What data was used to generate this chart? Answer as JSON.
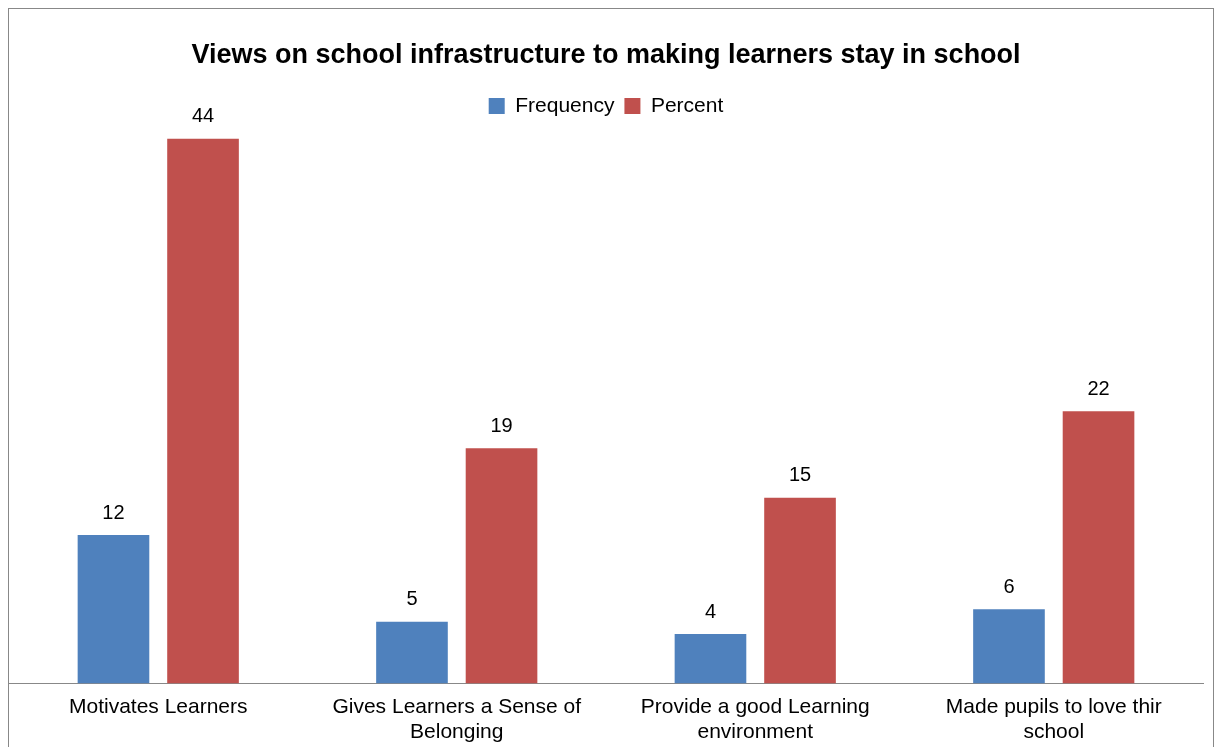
{
  "chart_data": {
    "type": "bar",
    "title": "Views on school infrastructure to making learners stay in school",
    "categories": [
      "Motivates Learners",
      "Gives Learners a Sense of Belonging",
      "Provide a good Learning environment",
      "Made pupils to love thir school"
    ],
    "series": [
      {
        "name": "Frequency",
        "color": "#4f81bd",
        "values": [
          12,
          5,
          4,
          6
        ]
      },
      {
        "name": "Percent",
        "color": "#c0504d",
        "values": [
          44,
          19,
          15,
          22
        ]
      }
    ],
    "data_labels": true,
    "legend": "top",
    "grid": false
  }
}
